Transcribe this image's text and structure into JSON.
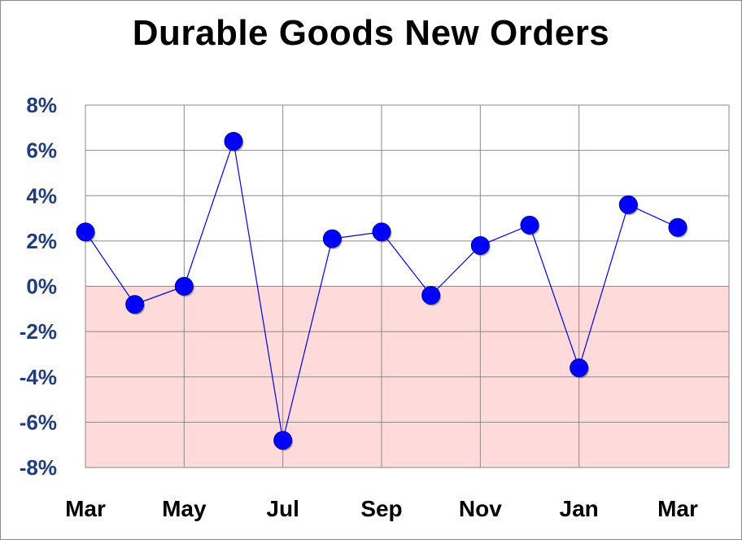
{
  "chart_data": {
    "type": "line",
    "title": "Durable Goods New Orders",
    "xlabel": "",
    "ylabel": "",
    "x_tick_labels": [
      "Mar",
      "May",
      "Jul",
      "Sep",
      "Nov",
      "Jan",
      "Mar"
    ],
    "y_tick_labels": [
      "8%",
      "6%",
      "4%",
      "2%",
      "0%",
      "-2%",
      "-4%",
      "-6%",
      "-8%"
    ],
    "ylim": [
      -8,
      8
    ],
    "grid": true,
    "negative_region_color": "#ffdada",
    "line_color": "#0000ee",
    "marker_color": "#0000ff",
    "y_tick_color": "#1f3d7a",
    "categories": [
      "Mar",
      "Apr",
      "May",
      "Jun",
      "Jul",
      "Aug",
      "Sep",
      "Oct",
      "Nov",
      "Dec",
      "Jan",
      "Feb",
      "Mar"
    ],
    "values": [
      2.4,
      -0.8,
      0.0,
      6.4,
      -6.8,
      2.1,
      2.4,
      -0.4,
      1.8,
      2.7,
      -3.6,
      3.6,
      2.6
    ]
  }
}
